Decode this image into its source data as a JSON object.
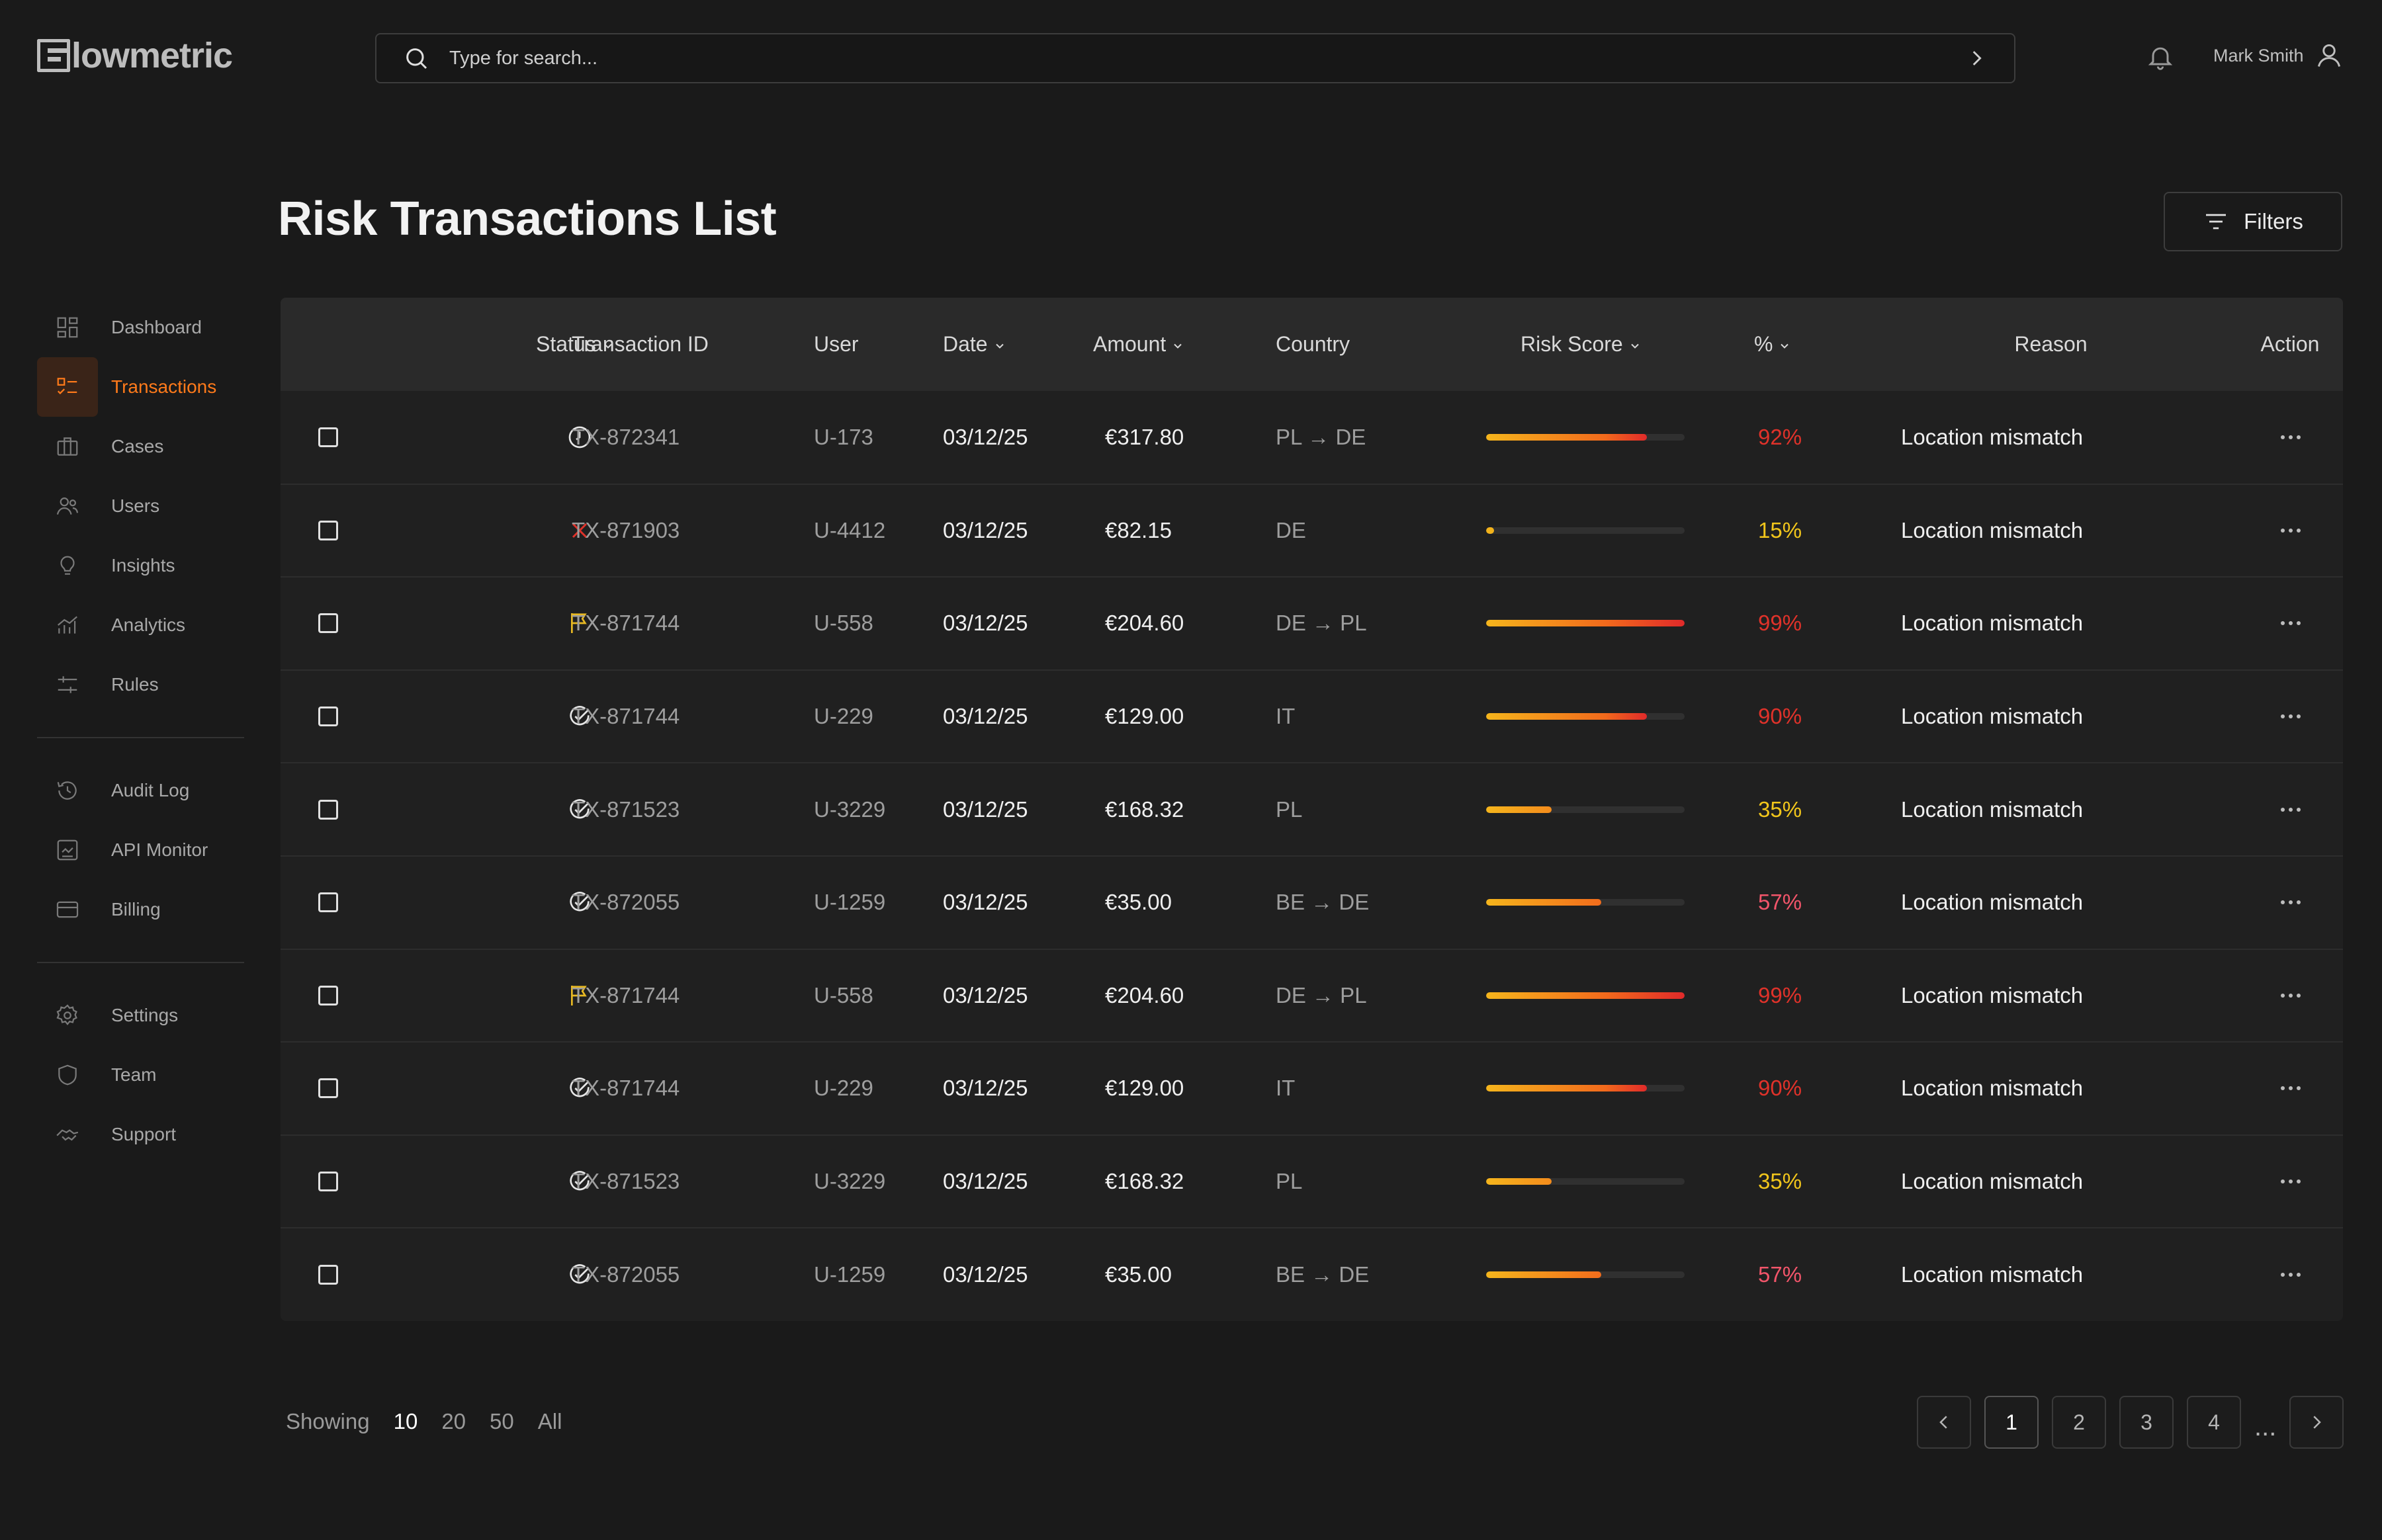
{
  "app": {
    "logo_text": "lowmetric",
    "search_placeholder": "Type for search...",
    "user_name": "Mark Smith"
  },
  "sidebar": {
    "groups": [
      [
        {
          "label": "Dashboard",
          "icon": "dashboard-icon",
          "active": false
        },
        {
          "label": "Transactions",
          "icon": "transactions-icon",
          "active": true
        },
        {
          "label": "Cases",
          "icon": "briefcase-icon",
          "active": false
        },
        {
          "label": "Users",
          "icon": "users-icon",
          "active": false
        },
        {
          "label": "Insights",
          "icon": "lightbulb-icon",
          "active": false
        },
        {
          "label": "Analytics",
          "icon": "analytics-icon",
          "active": false
        },
        {
          "label": "Rules",
          "icon": "sliders-icon",
          "active": false
        }
      ],
      [
        {
          "label": "Audit Log",
          "icon": "history-icon",
          "active": false
        },
        {
          "label": "API Monitor",
          "icon": "api-monitor-icon",
          "active": false
        },
        {
          "label": "Billing",
          "icon": "credit-card-icon",
          "active": false
        }
      ],
      [
        {
          "label": "Settings",
          "icon": "gear-icon",
          "active": false
        },
        {
          "label": "Team",
          "icon": "shield-icon",
          "active": false
        },
        {
          "label": "Support",
          "icon": "handshake-icon",
          "active": false
        }
      ]
    ]
  },
  "page": {
    "title": "Risk Transactions List",
    "filters_label": "Filters"
  },
  "table": {
    "columns": [
      {
        "label": "",
        "sortable": false
      },
      {
        "label": "Status",
        "sortable": true
      },
      {
        "label": "Transaction ID",
        "sortable": false
      },
      {
        "label": "User",
        "sortable": false
      },
      {
        "label": "Date",
        "sortable": true
      },
      {
        "label": "Amount",
        "sortable": true
      },
      {
        "label": "Country",
        "sortable": false
      },
      {
        "label": "Risk Score",
        "sortable": true
      },
      {
        "label": "%",
        "sortable": true
      },
      {
        "label": "Reason",
        "sortable": false
      },
      {
        "label": "Action",
        "sortable": false
      }
    ],
    "rows": [
      {
        "status": "pending",
        "id": "TX-872341",
        "user": "U-173",
        "date": "03/12/25",
        "amount": "€317.80",
        "country": "PL → DE",
        "risk": 0.81,
        "pct": "92%",
        "pct_color": "#e0322a",
        "reason": "Location mismatch"
      },
      {
        "status": "rejected",
        "id": "TX-871903",
        "user": "U-4412",
        "date": "03/12/25",
        "amount": "€82.15",
        "country": "DE",
        "risk": 0.04,
        "pct": "15%",
        "pct_color": "#f2c61b",
        "reason": "Location mismatch"
      },
      {
        "status": "flagged",
        "id": "TX-871744",
        "user": "U-558",
        "date": "03/12/25",
        "amount": "€204.60",
        "country": "DE → PL",
        "risk": 1.0,
        "pct": "99%",
        "pct_color": "#e0322a",
        "reason": "Location mismatch"
      },
      {
        "status": "approved",
        "id": "TX-871744",
        "user": "U-229",
        "date": "03/12/25",
        "amount": "€129.00",
        "country": "IT",
        "risk": 0.81,
        "pct": "90%",
        "pct_color": "#e0322a",
        "reason": "Location mismatch"
      },
      {
        "status": "approved",
        "id": "TX-871523",
        "user": "U-3229",
        "date": "03/12/25",
        "amount": "€168.32",
        "country": "PL",
        "risk": 0.33,
        "pct": "35%",
        "pct_color": "#f2c61b",
        "reason": "Location mismatch"
      },
      {
        "status": "approved",
        "id": "TX-872055",
        "user": "U-1259",
        "date": "03/12/25",
        "amount": "€35.00",
        "country": "BE → DE",
        "risk": 0.58,
        "pct": "57%",
        "pct_color": "#f2556a",
        "reason": "Location mismatch"
      },
      {
        "status": "flagged",
        "id": "TX-871744",
        "user": "U-558",
        "date": "03/12/25",
        "amount": "€204.60",
        "country": "DE → PL",
        "risk": 1.0,
        "pct": "99%",
        "pct_color": "#e0322a",
        "reason": "Location mismatch"
      },
      {
        "status": "approved",
        "id": "TX-871744",
        "user": "U-229",
        "date": "03/12/25",
        "amount": "€129.00",
        "country": "IT",
        "risk": 0.81,
        "pct": "90%",
        "pct_color": "#e0322a",
        "reason": "Location mismatch"
      },
      {
        "status": "approved",
        "id": "TX-871523",
        "user": "U-3229",
        "date": "03/12/25",
        "amount": "€168.32",
        "country": "PL",
        "risk": 0.33,
        "pct": "35%",
        "pct_color": "#f2c61b",
        "reason": "Location mismatch"
      },
      {
        "status": "approved",
        "id": "TX-872055",
        "user": "U-1259",
        "date": "03/12/25",
        "amount": "€35.00",
        "country": "BE → DE",
        "risk": 0.58,
        "pct": "57%",
        "pct_color": "#f2556a",
        "reason": "Location mismatch"
      }
    ]
  },
  "footer": {
    "showing_label": "Showing",
    "page_sizes": [
      {
        "label": "10",
        "selected": true
      },
      {
        "label": "20",
        "selected": false
      },
      {
        "label": "50",
        "selected": false
      },
      {
        "label": "All",
        "selected": false
      }
    ],
    "pages": [
      {
        "label": "1",
        "selected": true
      },
      {
        "label": "2",
        "selected": false
      },
      {
        "label": "3",
        "selected": false
      },
      {
        "label": "4",
        "selected": false
      }
    ],
    "ellipsis": "..."
  },
  "colors": {
    "accent": "#ff7a1a",
    "flag": "#e8b923",
    "reject": "#e0322a"
  }
}
